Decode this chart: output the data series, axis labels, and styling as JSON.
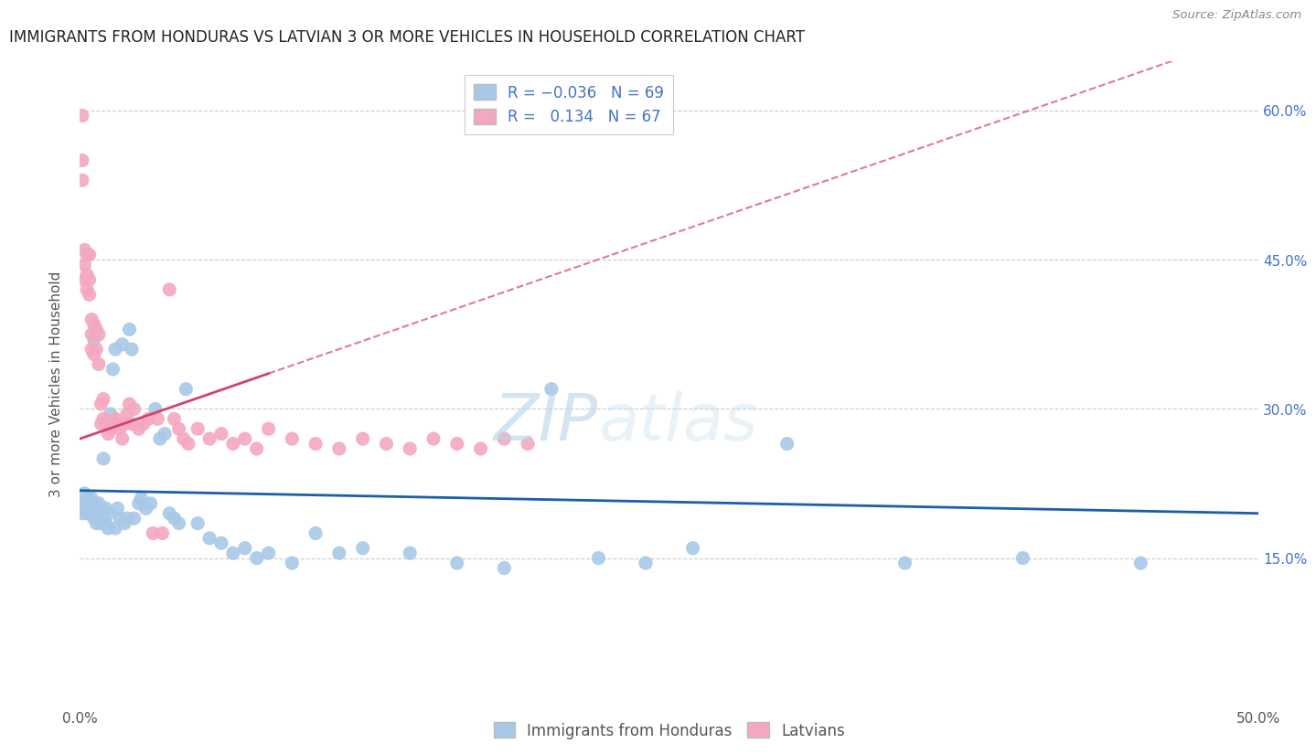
{
  "title": "IMMIGRANTS FROM HONDURAS VS LATVIAN 3 OR MORE VEHICLES IN HOUSEHOLD CORRELATION CHART",
  "source": "Source: ZipAtlas.com",
  "ylabel": "3 or more Vehicles in Household",
  "xlim": [
    0.0,
    0.5
  ],
  "ylim": [
    0.0,
    0.65
  ],
  "xticks": [
    0.0,
    0.1,
    0.2,
    0.3,
    0.4,
    0.5
  ],
  "xtick_labels": [
    "0.0%",
    "",
    "",
    "",
    "",
    "50.0%"
  ],
  "yticks": [
    0.15,
    0.3,
    0.45,
    0.6
  ],
  "ytick_labels": [
    "15.0%",
    "30.0%",
    "45.0%",
    "60.0%"
  ],
  "blue_R": "-0.036",
  "blue_N": "69",
  "pink_R": "0.134",
  "pink_N": "67",
  "blue_color": "#a8c8e8",
  "pink_color": "#f4a8c0",
  "blue_line_color": "#1a5fa8",
  "pink_line_color": "#d44070",
  "legend_label_blue": "Immigrants from Honduras",
  "legend_label_pink": "Latvians",
  "blue_x": [
    0.001,
    0.001,
    0.002,
    0.002,
    0.003,
    0.003,
    0.004,
    0.004,
    0.005,
    0.005,
    0.006,
    0.006,
    0.007,
    0.007,
    0.008,
    0.008,
    0.009,
    0.009,
    0.01,
    0.01,
    0.011,
    0.011,
    0.012,
    0.012,
    0.013,
    0.014,
    0.015,
    0.015,
    0.016,
    0.017,
    0.018,
    0.019,
    0.02,
    0.021,
    0.022,
    0.023,
    0.025,
    0.026,
    0.028,
    0.03,
    0.032,
    0.034,
    0.036,
    0.038,
    0.04,
    0.042,
    0.045,
    0.05,
    0.055,
    0.06,
    0.065,
    0.07,
    0.075,
    0.08,
    0.09,
    0.1,
    0.11,
    0.12,
    0.14,
    0.16,
    0.18,
    0.2,
    0.22,
    0.24,
    0.26,
    0.3,
    0.35,
    0.4,
    0.45
  ],
  "blue_y": [
    0.205,
    0.195,
    0.215,
    0.2,
    0.21,
    0.195,
    0.205,
    0.195,
    0.21,
    0.195,
    0.205,
    0.19,
    0.2,
    0.185,
    0.205,
    0.19,
    0.2,
    0.185,
    0.195,
    0.185,
    0.2,
    0.185,
    0.195,
    0.18,
    0.19,
    0.2,
    0.195,
    0.18,
    0.2,
    0.19,
    0.195,
    0.185,
    0.19,
    0.2,
    0.195,
    0.19,
    0.205,
    0.21,
    0.2,
    0.205,
    0.21,
    0.195,
    0.185,
    0.195,
    0.19,
    0.185,
    0.18,
    0.185,
    0.17,
    0.165,
    0.155,
    0.16,
    0.15,
    0.155,
    0.145,
    0.175,
    0.155,
    0.16,
    0.155,
    0.145,
    0.14,
    0.16,
    0.15,
    0.145,
    0.16,
    0.155,
    0.145,
    0.15,
    0.145
  ],
  "blue_y_scatter": [
    0.205,
    0.195,
    0.215,
    0.2,
    0.21,
    0.195,
    0.205,
    0.195,
    0.21,
    0.195,
    0.37,
    0.19,
    0.2,
    0.185,
    0.205,
    0.19,
    0.2,
    0.185,
    0.25,
    0.185,
    0.2,
    0.185,
    0.195,
    0.18,
    0.295,
    0.34,
    0.36,
    0.18,
    0.2,
    0.19,
    0.365,
    0.185,
    0.19,
    0.38,
    0.36,
    0.19,
    0.205,
    0.21,
    0.2,
    0.205,
    0.3,
    0.27,
    0.275,
    0.195,
    0.19,
    0.185,
    0.32,
    0.185,
    0.17,
    0.165,
    0.155,
    0.16,
    0.15,
    0.155,
    0.145,
    0.175,
    0.155,
    0.16,
    0.155,
    0.145,
    0.14,
    0.32,
    0.15,
    0.145,
    0.16,
    0.265,
    0.145,
    0.15,
    0.145
  ],
  "pink_x": [
    0.001,
    0.001,
    0.001,
    0.002,
    0.002,
    0.002,
    0.003,
    0.003,
    0.003,
    0.004,
    0.004,
    0.004,
    0.005,
    0.005,
    0.005,
    0.006,
    0.006,
    0.007,
    0.007,
    0.008,
    0.008,
    0.009,
    0.009,
    0.01,
    0.01,
    0.011,
    0.012,
    0.013,
    0.014,
    0.015,
    0.016,
    0.017,
    0.018,
    0.019,
    0.02,
    0.021,
    0.022,
    0.023,
    0.025,
    0.027,
    0.029,
    0.031,
    0.033,
    0.035,
    0.038,
    0.04,
    0.042,
    0.044,
    0.046,
    0.05,
    0.055,
    0.06,
    0.065,
    0.07,
    0.075,
    0.08,
    0.09,
    0.1,
    0.11,
    0.12,
    0.13,
    0.14,
    0.15,
    0.16,
    0.17,
    0.18,
    0.19
  ],
  "pink_y": [
    0.595,
    0.55,
    0.53,
    0.46,
    0.445,
    0.43,
    0.455,
    0.435,
    0.42,
    0.455,
    0.43,
    0.415,
    0.39,
    0.375,
    0.36,
    0.385,
    0.355,
    0.38,
    0.36,
    0.375,
    0.345,
    0.305,
    0.285,
    0.31,
    0.29,
    0.285,
    0.275,
    0.28,
    0.285,
    0.29,
    0.285,
    0.28,
    0.27,
    0.285,
    0.295,
    0.305,
    0.285,
    0.3,
    0.28,
    0.285,
    0.29,
    0.175,
    0.29,
    0.175,
    0.42,
    0.29,
    0.28,
    0.27,
    0.265,
    0.28,
    0.27,
    0.275,
    0.265,
    0.27,
    0.26,
    0.28,
    0.27,
    0.265,
    0.26,
    0.27,
    0.265,
    0.26,
    0.27,
    0.265,
    0.26,
    0.27,
    0.265
  ]
}
